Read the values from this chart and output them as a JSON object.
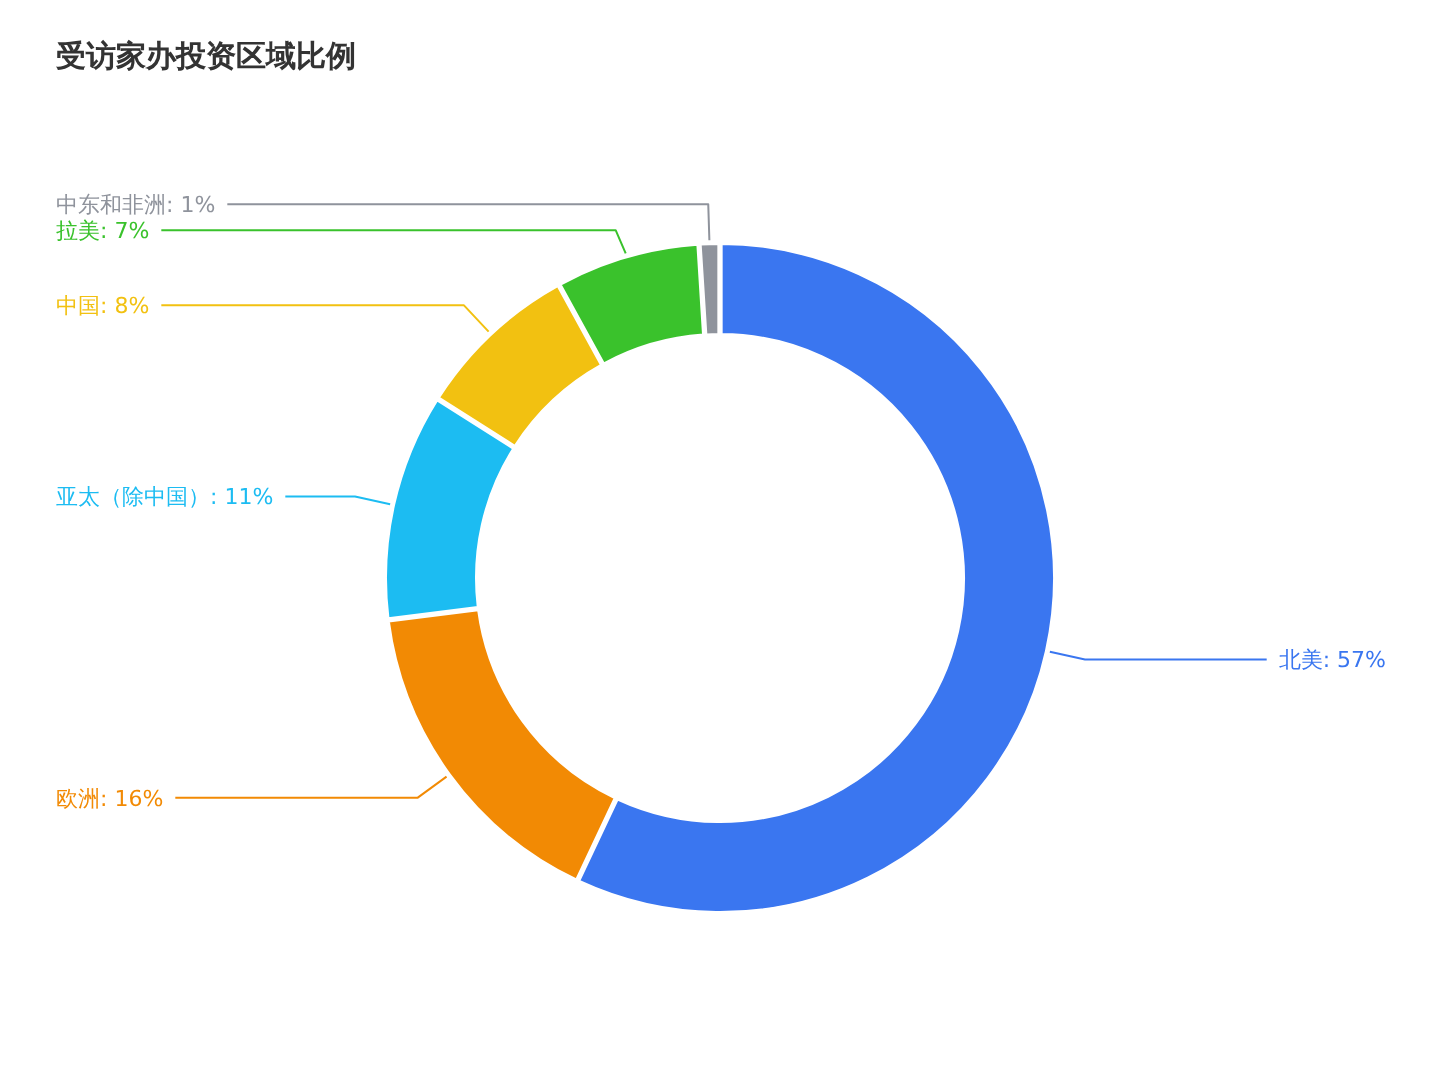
{
  "chart_data": {
    "type": "donut",
    "title": "受访家办投资区域比例",
    "categories": [
      "北美",
      "欧洲",
      "亚太（除中国）",
      "中国",
      "拉美",
      "中东和非洲"
    ],
    "values": [
      57,
      16,
      11,
      8,
      7,
      1
    ],
    "value_labels": [
      "57%",
      "16%",
      "11%",
      "8%",
      "7%",
      "1%"
    ],
    "colors": [
      "#3a76f0",
      "#f28a04",
      "#1cbcf2",
      "#f2c111",
      "#3ac22c",
      "#8f939c"
    ]
  }
}
